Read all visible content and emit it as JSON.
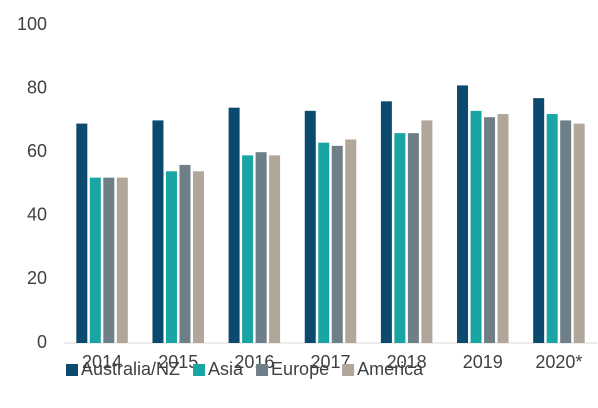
{
  "chart_data": {
    "type": "bar",
    "categories": [
      "2014",
      "2015",
      "2016",
      "2017",
      "2018",
      "2019",
      "2020*"
    ],
    "series": [
      {
        "name": "Australia/NZ",
        "color": "#0b4a6e",
        "values": [
          69,
          70,
          74,
          73,
          76,
          81,
          77
        ]
      },
      {
        "name": "Asia",
        "color": "#1aa5a5",
        "values": [
          52,
          54,
          59,
          63,
          66,
          73,
          72
        ]
      },
      {
        "name": "Europe",
        "color": "#6f7f88",
        "values": [
          52,
          56,
          60,
          62,
          66,
          71,
          70
        ]
      },
      {
        "name": "America",
        "color": "#b0a69a",
        "values": [
          52,
          54,
          59,
          64,
          70,
          72,
          69
        ]
      }
    ],
    "ylim": [
      0,
      100
    ],
    "yticks": [
      0,
      20,
      40,
      60,
      80,
      100
    ],
    "grid": false,
    "legend": "bottom"
  }
}
